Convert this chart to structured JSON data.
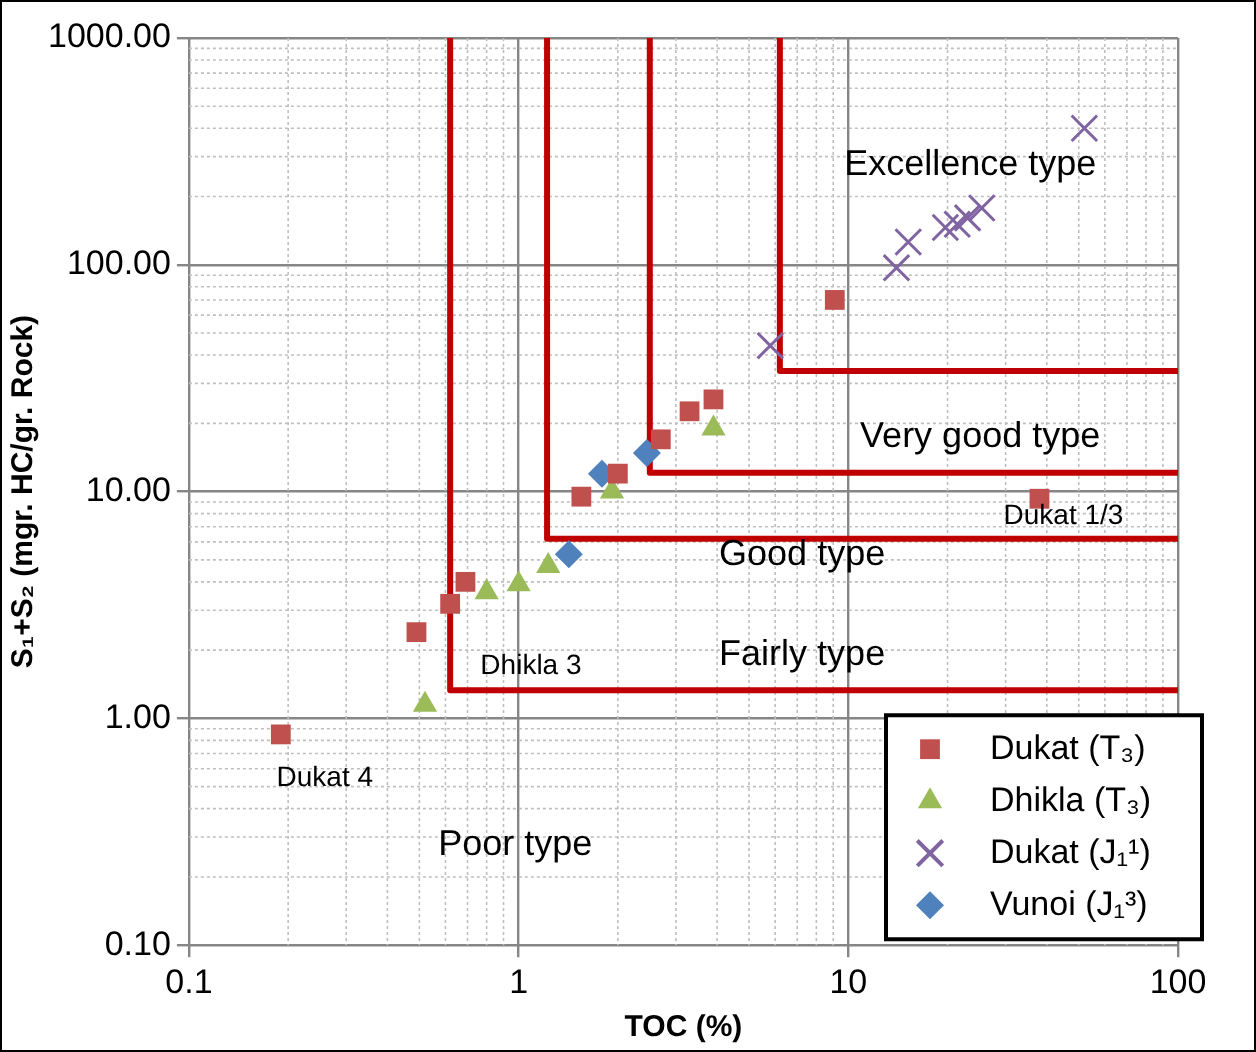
{
  "chart_data": {
    "type": "scatter",
    "xlabel": "TOC (%)",
    "ylabel": "S₁+S₂ (mgr. HC/gr. Rock)",
    "log": "xy",
    "grid": true,
    "legend": "bottom right",
    "xlim": [
      0.1,
      100
    ],
    "xticks": [
      0.1,
      1,
      10,
      100
    ],
    "ylim": [
      0.1,
      1000
    ],
    "yticks": [
      {
        "value": 0.1,
        "label": "0.10"
      },
      {
        "value": 1,
        "label": "1.00"
      },
      {
        "value": 10,
        "label": "10.00"
      },
      {
        "value": 100,
        "label": "100.00"
      },
      {
        "value": 1000,
        "label": "1000.00"
      }
    ],
    "series": [
      {
        "name": "Dukat (T₃)",
        "color": "#c0504d",
        "marker": "square",
        "x": [
          0.19,
          0.49,
          0.62,
          0.69,
          1.55,
          2.0,
          2.7,
          3.3,
          3.9,
          9.1,
          38
        ],
        "values": [
          0.85,
          2.4,
          3.2,
          4.0,
          9.5,
          12,
          17,
          22.6,
          25.5,
          70,
          9.3
        ]
      },
      {
        "name": "Dhikla (T₃)",
        "color": "#9bbb59",
        "marker": "triangle",
        "x": [
          0.52,
          0.8,
          1.0,
          1.23,
          1.92,
          3.9
        ],
        "values": [
          1.15,
          3.6,
          3.9,
          4.7,
          10,
          19
        ]
      },
      {
        "name": "Dukat (J₁¹)",
        "color": "#8064a2",
        "marker": "cross",
        "x": [
          5.8,
          14,
          15.2,
          19.7,
          21.4,
          23,
          25.4,
          52
        ],
        "values": [
          44,
          97,
          126,
          146,
          151,
          161,
          178,
          400
        ]
      },
      {
        "name": "Vunoi (J₁³)",
        "color": "#4f81bd",
        "marker": "diamond",
        "x": [
          1.42,
          1.79,
          2.45
        ],
        "values": [
          5.3,
          12,
          14.8
        ]
      },
      {
        "type": "line",
        "color": "#c00000",
        "marker": "none",
        "x": [
          0.62,
          0.62,
          100
        ],
        "values": [
          1000,
          1.33,
          1.33
        ]
      },
      {
        "type": "line",
        "color": "#c00000",
        "marker": "none",
        "x": [
          1.22,
          1.22,
          100
        ],
        "values": [
          1000,
          6.2,
          6.2
        ]
      },
      {
        "type": "line",
        "color": "#c00000",
        "marker": "none",
        "x": [
          2.5,
          2.5,
          100
        ],
        "values": [
          1000,
          12.1,
          12.1
        ]
      },
      {
        "type": "line",
        "color": "#c00000",
        "marker": "none",
        "x": [
          6.2,
          6.2,
          100
        ],
        "values": [
          1000,
          34,
          34
        ]
      }
    ],
    "annotations": [
      "Excellence type",
      "Very good type",
      "Good type",
      "Fairly type",
      "Poor type",
      {
        "text": "Dukat 4",
        "x": 0.19,
        "y": 0.85
      },
      {
        "text": "Dhikla 3",
        "x": 0.52,
        "y": 1.15
      },
      {
        "text": "Dukat 1/3",
        "x": 38,
        "y": 9.3
      }
    ]
  }
}
